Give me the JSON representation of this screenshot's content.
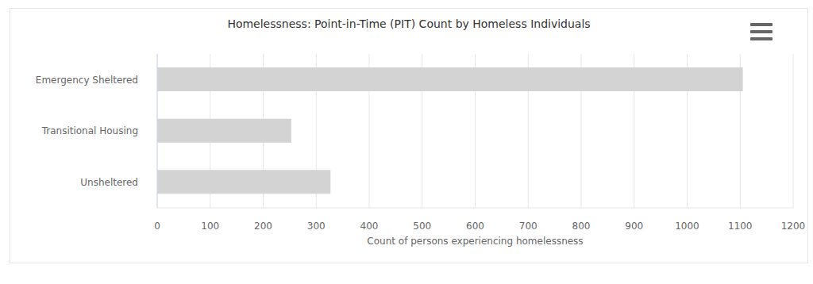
{
  "chart_data": {
    "type": "bar",
    "title": "Homelessness: Point-in-Time (PIT) Count by Homeless Individuals",
    "xlabel": "Count of persons experiencing homelessness",
    "categories": [
      "Emergency Sheltered",
      "Transitional Housing",
      "Unsheltered"
    ],
    "values": [
      1105,
      253,
      327
    ],
    "color": "#d3d3d3",
    "orientation": "horizontal",
    "xlim": [
      0,
      1200
    ],
    "xticks": [
      0,
      100,
      200,
      300,
      400,
      500,
      600,
      700,
      800,
      900,
      1000,
      1100,
      1200
    ],
    "grid": true
  }
}
